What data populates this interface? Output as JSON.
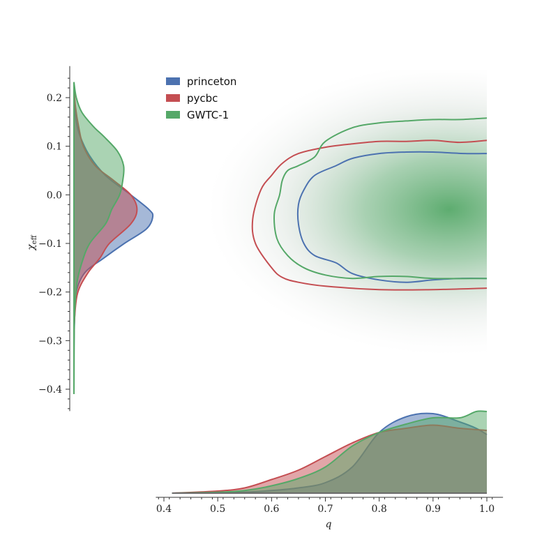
{
  "chart_data": {
    "type": "corner_kde",
    "xlabel": "q",
    "ylabel": "χ_eff",
    "xlabel_display": "q",
    "ylabel_display": {
      "main": "χ",
      "sub": "eff"
    },
    "xlim": [
      0.385,
      1.03
    ],
    "ylim": [
      -0.445,
      0.265
    ],
    "x_ticks": [
      0.4,
      0.5,
      0.6,
      0.7,
      0.8,
      0.9,
      1.0
    ],
    "x_tick_labels": [
      "0.4",
      "0.5",
      "0.6",
      "0.7",
      "0.8",
      "0.9",
      "1.0"
    ],
    "y_ticks": [
      0.2,
      0.1,
      0.0,
      -0.1,
      -0.2,
      -0.3,
      -0.4
    ],
    "y_tick_labels": [
      "0.2",
      "0.1",
      "0.0",
      "−0.1",
      "−0.2",
      "−0.3",
      "−0.4"
    ],
    "legend_placement": "top-left",
    "grid": false,
    "series": [
      {
        "name": "princeton",
        "color": "#4c72b0",
        "q_marginal": [
          [
            0.415,
            0
          ],
          [
            0.5,
            0.003
          ],
          [
            0.55,
            0.01
          ],
          [
            0.6,
            0.025
          ],
          [
            0.65,
            0.05
          ],
          [
            0.7,
            0.1
          ],
          [
            0.75,
            0.25
          ],
          [
            0.8,
            0.58
          ],
          [
            0.85,
            0.73
          ],
          [
            0.9,
            0.76
          ],
          [
            0.95,
            0.68
          ],
          [
            0.98,
            0.62
          ],
          [
            1.0,
            0.56
          ]
        ],
        "chi_marginal": [
          [
            0.215,
            0
          ],
          [
            0.18,
            0.01
          ],
          [
            0.15,
            0.03
          ],
          [
            0.12,
            0.08
          ],
          [
            0.08,
            0.2
          ],
          [
            0.04,
            0.4
          ],
          [
            0.0,
            0.72
          ],
          [
            -0.03,
            0.95
          ],
          [
            -0.045,
            1.0
          ],
          [
            -0.07,
            0.92
          ],
          [
            -0.1,
            0.64
          ],
          [
            -0.13,
            0.38
          ],
          [
            -0.16,
            0.14
          ],
          [
            -0.2,
            0.03
          ],
          [
            -0.25,
            0.01
          ],
          [
            -0.3,
            0.002
          ],
          [
            -0.36,
            0
          ]
        ],
        "contour": [
          [
            1.0,
            0.085
          ],
          [
            0.96,
            0.085
          ],
          [
            0.9,
            0.088
          ],
          [
            0.85,
            0.088
          ],
          [
            0.8,
            0.085
          ],
          [
            0.75,
            0.075
          ],
          [
            0.72,
            0.06
          ],
          [
            0.68,
            0.04
          ],
          [
            0.66,
            0.01
          ],
          [
            0.65,
            -0.02
          ],
          [
            0.65,
            -0.06
          ],
          [
            0.66,
            -0.1
          ],
          [
            0.68,
            -0.125
          ],
          [
            0.72,
            -0.14
          ],
          [
            0.75,
            -0.162
          ],
          [
            0.8,
            -0.175
          ],
          [
            0.85,
            -0.18
          ],
          [
            0.9,
            -0.175
          ],
          [
            0.95,
            -0.172
          ],
          [
            1.0,
            -0.172
          ]
        ]
      },
      {
        "name": "pycbc",
        "color": "#c44e52",
        "q_marginal": [
          [
            0.415,
            0
          ],
          [
            0.5,
            0.02
          ],
          [
            0.55,
            0.05
          ],
          [
            0.6,
            0.13
          ],
          [
            0.65,
            0.22
          ],
          [
            0.7,
            0.35
          ],
          [
            0.75,
            0.48
          ],
          [
            0.8,
            0.58
          ],
          [
            0.85,
            0.62
          ],
          [
            0.9,
            0.65
          ],
          [
            0.95,
            0.62
          ],
          [
            1.0,
            0.6
          ]
        ],
        "chi_marginal": [
          [
            0.22,
            0
          ],
          [
            0.18,
            0.02
          ],
          [
            0.14,
            0.06
          ],
          [
            0.1,
            0.12
          ],
          [
            0.06,
            0.27
          ],
          [
            0.03,
            0.5
          ],
          [
            0.0,
            0.72
          ],
          [
            -0.03,
            0.8
          ],
          [
            -0.06,
            0.72
          ],
          [
            -0.1,
            0.45
          ],
          [
            -0.13,
            0.33
          ],
          [
            -0.16,
            0.18
          ],
          [
            -0.2,
            0.05
          ],
          [
            -0.25,
            0.01
          ],
          [
            -0.3,
            0
          ]
        ],
        "contour": [
          [
            1.0,
            0.112
          ],
          [
            0.95,
            0.108
          ],
          [
            0.9,
            0.112
          ],
          [
            0.85,
            0.11
          ],
          [
            0.8,
            0.11
          ],
          [
            0.75,
            0.105
          ],
          [
            0.7,
            0.098
          ],
          [
            0.65,
            0.085
          ],
          [
            0.62,
            0.065
          ],
          [
            0.6,
            0.04
          ],
          [
            0.58,
            0.01
          ],
          [
            0.565,
            -0.05
          ],
          [
            0.57,
            -0.1
          ],
          [
            0.6,
            -0.15
          ],
          [
            0.62,
            -0.17
          ],
          [
            0.65,
            -0.18
          ],
          [
            0.7,
            -0.188
          ],
          [
            0.8,
            -0.195
          ],
          [
            0.9,
            -0.195
          ],
          [
            1.0,
            -0.192
          ]
        ]
      },
      {
        "name": "GWTC-1",
        "color": "#55a868",
        "q_marginal": [
          [
            0.415,
            0
          ],
          [
            0.5,
            0.008
          ],
          [
            0.55,
            0.025
          ],
          [
            0.6,
            0.07
          ],
          [
            0.65,
            0.14
          ],
          [
            0.7,
            0.25
          ],
          [
            0.75,
            0.45
          ],
          [
            0.8,
            0.58
          ],
          [
            0.85,
            0.66
          ],
          [
            0.9,
            0.72
          ],
          [
            0.95,
            0.72
          ],
          [
            0.98,
            0.78
          ],
          [
            1.0,
            0.78
          ]
        ],
        "chi_marginal": [
          [
            0.232,
            0
          ],
          [
            0.2,
            0.03
          ],
          [
            0.17,
            0.1
          ],
          [
            0.14,
            0.25
          ],
          [
            0.12,
            0.38
          ],
          [
            0.09,
            0.55
          ],
          [
            0.06,
            0.63
          ],
          [
            0.03,
            0.62
          ],
          [
            0.0,
            0.58
          ],
          [
            -0.03,
            0.48
          ],
          [
            -0.06,
            0.4
          ],
          [
            -0.1,
            0.2
          ],
          [
            -0.14,
            0.1
          ],
          [
            -0.18,
            0.04
          ],
          [
            -0.24,
            0.01
          ],
          [
            -0.3,
            0.003
          ],
          [
            -0.41,
            0
          ]
        ],
        "contour": [
          [
            1.0,
            0.158
          ],
          [
            0.95,
            0.155
          ],
          [
            0.9,
            0.155
          ],
          [
            0.85,
            0.152
          ],
          [
            0.8,
            0.148
          ],
          [
            0.75,
            0.138
          ],
          [
            0.7,
            0.11
          ],
          [
            0.68,
            0.078
          ],
          [
            0.65,
            0.06
          ],
          [
            0.63,
            0.05
          ],
          [
            0.62,
            0.03
          ],
          [
            0.615,
            0.0
          ],
          [
            0.605,
            -0.04
          ],
          [
            0.61,
            -0.09
          ],
          [
            0.63,
            -0.125
          ],
          [
            0.66,
            -0.15
          ],
          [
            0.7,
            -0.165
          ],
          [
            0.75,
            -0.172
          ],
          [
            0.8,
            -0.168
          ],
          [
            0.85,
            -0.168
          ],
          [
            0.9,
            -0.172
          ],
          [
            1.0,
            -0.172
          ]
        ]
      }
    ]
  }
}
